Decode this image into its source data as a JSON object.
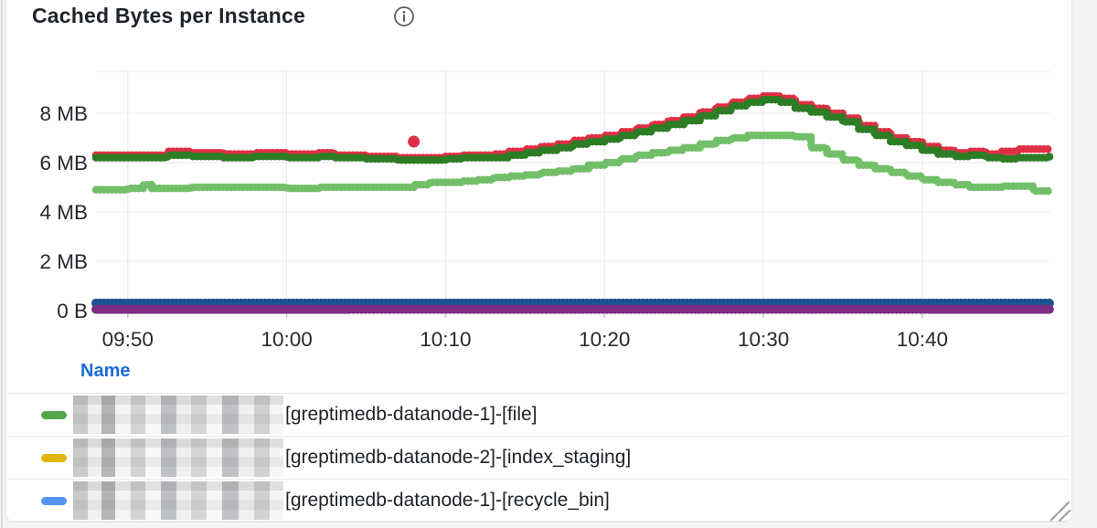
{
  "panel": {
    "title": "Cached Bytes per Instance",
    "info_icon": "info-icon"
  },
  "chart_data": {
    "type": "scatter",
    "style": "dotted-step-lines",
    "title": "Cached Bytes per Instance",
    "xlabel": "",
    "ylabel": "",
    "value_unit": "MB",
    "ylim": [
      0,
      9.7
    ],
    "x_range_minutes": [
      0,
      60
    ],
    "grid": true,
    "legend_position": "bottom-table",
    "x_ticks": [
      {
        "label": "09:50",
        "t": 2
      },
      {
        "label": "10:00",
        "t": 12
      },
      {
        "label": "10:10",
        "t": 22
      },
      {
        "label": "10:20",
        "t": 32
      },
      {
        "label": "10:30",
        "t": 42
      },
      {
        "label": "10:40",
        "t": 52
      }
    ],
    "y_ticks": [
      {
        "label": "8 MB",
        "v": 8
      },
      {
        "label": "6 MB",
        "v": 6
      },
      {
        "label": "4 MB",
        "v": 4
      },
      {
        "label": "2 MB",
        "v": 2
      },
      {
        "label": "0 B",
        "v": 0
      }
    ],
    "series": [
      {
        "id": "navy",
        "color": "#1b5390",
        "width": 10,
        "points": [
          [
            0,
            0.3
          ],
          [
            60,
            0.3
          ]
        ]
      },
      {
        "id": "purple",
        "color": "#7c2c85",
        "width": 10,
        "points": [
          [
            0,
            0.05
          ],
          [
            60,
            0.05
          ]
        ]
      },
      {
        "id": "light-green",
        "color": "#73bf69",
        "width": 8.5,
        "points": [
          [
            0,
            4.9
          ],
          [
            2,
            4.95
          ],
          [
            3,
            5.1
          ],
          [
            3.5,
            4.95
          ],
          [
            6,
            5.0
          ],
          [
            10,
            5.0
          ],
          [
            12,
            4.95
          ],
          [
            14,
            5.0
          ],
          [
            18,
            5.0
          ],
          [
            20,
            5.1
          ],
          [
            21,
            5.2
          ],
          [
            23,
            5.25
          ],
          [
            24,
            5.3
          ],
          [
            25,
            5.4
          ],
          [
            26,
            5.45
          ],
          [
            27,
            5.5
          ],
          [
            28,
            5.6
          ],
          [
            29,
            5.65
          ],
          [
            30,
            5.75
          ],
          [
            31,
            5.9
          ],
          [
            32,
            6.0
          ],
          [
            33,
            6.15
          ],
          [
            34,
            6.3
          ],
          [
            35,
            6.4
          ],
          [
            36,
            6.5
          ],
          [
            37,
            6.6
          ],
          [
            38,
            6.75
          ],
          [
            39,
            6.9
          ],
          [
            40,
            7.0
          ],
          [
            41,
            7.1
          ],
          [
            42,
            7.1
          ],
          [
            44,
            7.05
          ],
          [
            45,
            6.6
          ],
          [
            46,
            6.35
          ],
          [
            47,
            6.1
          ],
          [
            48,
            5.9
          ],
          [
            49,
            5.75
          ],
          [
            50,
            5.6
          ],
          [
            51,
            5.45
          ],
          [
            52,
            5.3
          ],
          [
            53,
            5.2
          ],
          [
            54,
            5.1
          ],
          [
            55,
            5.0
          ],
          [
            57,
            5.05
          ],
          [
            58,
            5.05
          ],
          [
            59,
            4.85
          ],
          [
            60,
            4.85
          ]
        ]
      },
      {
        "id": "red",
        "color": "#e02f44",
        "width": 8.5,
        "outliers": [
          [
            20,
            6.85
          ]
        ],
        "points": [
          [
            0,
            6.3
          ],
          [
            4,
            6.3
          ],
          [
            4.5,
            6.45
          ],
          [
            6,
            6.4
          ],
          [
            8,
            6.35
          ],
          [
            10,
            6.4
          ],
          [
            12,
            6.35
          ],
          [
            14,
            6.4
          ],
          [
            15,
            6.3
          ],
          [
            17,
            6.25
          ],
          [
            19,
            6.2
          ],
          [
            21,
            6.2
          ],
          [
            22,
            6.25
          ],
          [
            23,
            6.3
          ],
          [
            24,
            6.3
          ],
          [
            25,
            6.35
          ],
          [
            26,
            6.45
          ],
          [
            27,
            6.55
          ],
          [
            28,
            6.65
          ],
          [
            29,
            6.75
          ],
          [
            30,
            6.9
          ],
          [
            31,
            7.0
          ],
          [
            32,
            7.1
          ],
          [
            33,
            7.25
          ],
          [
            34,
            7.4
          ],
          [
            35,
            7.55
          ],
          [
            36,
            7.7
          ],
          [
            37,
            7.85
          ],
          [
            38,
            8.05
          ],
          [
            39,
            8.25
          ],
          [
            40,
            8.45
          ],
          [
            41,
            8.6
          ],
          [
            42,
            8.7
          ],
          [
            43,
            8.6
          ],
          [
            44,
            8.35
          ],
          [
            45,
            8.2
          ],
          [
            46,
            8.0
          ],
          [
            47,
            7.8
          ],
          [
            48,
            7.5
          ],
          [
            49,
            7.25
          ],
          [
            50,
            7.0
          ],
          [
            51,
            6.85
          ],
          [
            52,
            6.65
          ],
          [
            53,
            6.5
          ],
          [
            54,
            6.4
          ],
          [
            55,
            6.45
          ],
          [
            56,
            6.35
          ],
          [
            57,
            6.45
          ],
          [
            58,
            6.55
          ],
          [
            60,
            6.55
          ]
        ]
      },
      {
        "id": "dark-green",
        "color": "#2d7c26",
        "width": 8.5,
        "points": [
          [
            0,
            6.2
          ],
          [
            4,
            6.2
          ],
          [
            4.5,
            6.3
          ],
          [
            6,
            6.25
          ],
          [
            8,
            6.2
          ],
          [
            10,
            6.25
          ],
          [
            12,
            6.2
          ],
          [
            14,
            6.25
          ],
          [
            15,
            6.2
          ],
          [
            17,
            6.15
          ],
          [
            19,
            6.1
          ],
          [
            21,
            6.1
          ],
          [
            22,
            6.15
          ],
          [
            23,
            6.2
          ],
          [
            25,
            6.2
          ],
          [
            26,
            6.3
          ],
          [
            27,
            6.4
          ],
          [
            28,
            6.5
          ],
          [
            29,
            6.6
          ],
          [
            30,
            6.75
          ],
          [
            31,
            6.85
          ],
          [
            32,
            6.95
          ],
          [
            33,
            7.1
          ],
          [
            34,
            7.25
          ],
          [
            35,
            7.4
          ],
          [
            36,
            7.55
          ],
          [
            37,
            7.7
          ],
          [
            38,
            7.9
          ],
          [
            39,
            8.1
          ],
          [
            40,
            8.3
          ],
          [
            41,
            8.45
          ],
          [
            42,
            8.55
          ],
          [
            43,
            8.45
          ],
          [
            44,
            8.2
          ],
          [
            45,
            8.05
          ],
          [
            46,
            7.85
          ],
          [
            47,
            7.65
          ],
          [
            48,
            7.35
          ],
          [
            49,
            7.1
          ],
          [
            50,
            6.85
          ],
          [
            51,
            6.7
          ],
          [
            52,
            6.5
          ],
          [
            53,
            6.35
          ],
          [
            54,
            6.25
          ],
          [
            55,
            6.3
          ],
          [
            56,
            6.2
          ],
          [
            57,
            6.15
          ],
          [
            58,
            6.2
          ],
          [
            60,
            6.25
          ]
        ]
      }
    ]
  },
  "legend": {
    "header": "Name",
    "rows": [
      {
        "color": "#56a64b",
        "text": "[greptimedb-datanode-1]-[file]",
        "prefix_redacted": true
      },
      {
        "color": "#e0b400",
        "text": "[greptimedb-datanode-2]-[index_staging]",
        "prefix_redacted": true
      },
      {
        "color": "#5794f2",
        "text": "[greptimedb-datanode-1]-[recycle_bin]",
        "prefix_redacted": true
      }
    ]
  },
  "colors": {
    "page_background": "#f2f4f3",
    "panel_background": "#ffffff",
    "gridline": "#e8e8e8",
    "axis_text": "#25292e",
    "legend_link": "#1a6cd9"
  }
}
